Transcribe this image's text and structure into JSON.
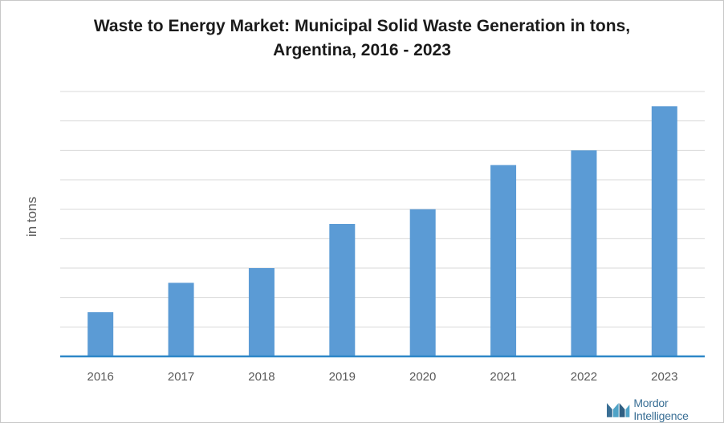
{
  "chart_data": {
    "type": "bar",
    "title_lines": [
      "Waste to Energy Market: Municipal Solid Waste Generation in tons,",
      "Argentina, 2016 - 2023"
    ],
    "ylabel": "in tons",
    "categories": [
      "2016",
      "2017",
      "2018",
      "2019",
      "2020",
      "2021",
      "2022",
      "2023"
    ],
    "values": [
      15,
      25,
      30,
      45,
      50,
      65,
      70,
      85
    ],
    "ylim": [
      0,
      90
    ],
    "grid": true,
    "bar_color": "#5b9bd5",
    "axis_color": "#2e87c8",
    "grid_color": "#d9d9d9"
  },
  "logo": {
    "name": "mordor-intelligence-logo",
    "text": "Mordor Intelligence"
  }
}
